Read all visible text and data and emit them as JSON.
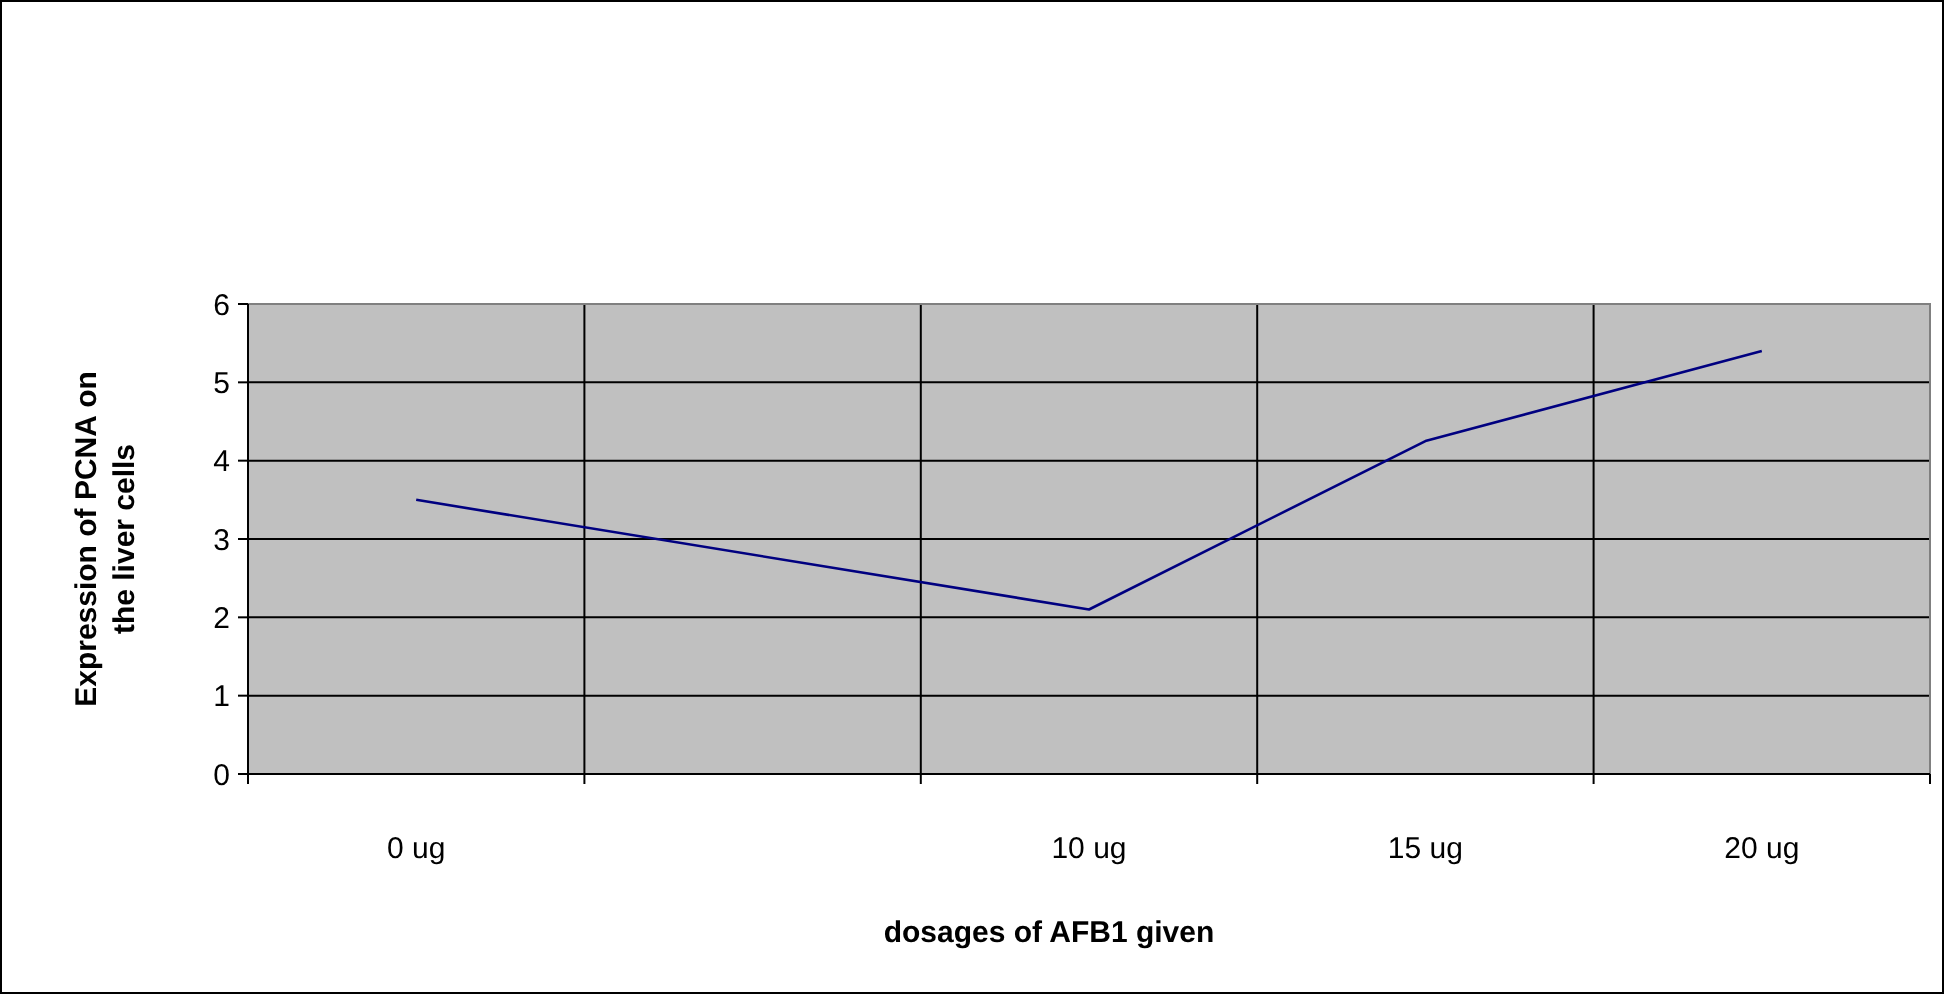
{
  "chart_data": {
    "type": "line",
    "xlabel": "dosages of AFB1 given",
    "ylabel": "Expression of PCNA on the liver cells",
    "categories": [
      "0 ug",
      null,
      "10 ug",
      "15 ug",
      "20 ug"
    ],
    "series": [
      {
        "color": "#000080",
        "values": [
          3.5,
          null,
          2.1,
          4.25,
          5.4
        ]
      }
    ],
    "ylim": [
      0,
      6
    ],
    "yticks": [
      0,
      1,
      2,
      3,
      4,
      5,
      6
    ],
    "grid": true,
    "marker": "none",
    "line_style": "solid"
  }
}
